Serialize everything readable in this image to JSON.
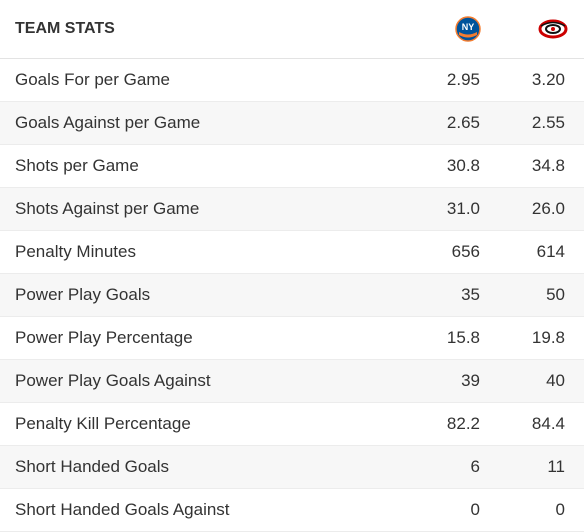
{
  "header": {
    "title": "TEAM STATS",
    "home_logo": "islanders-logo-icon",
    "away_logo": "hurricanes-logo-icon"
  },
  "colors": {
    "islanders_blue": "#00539b",
    "islanders_orange": "#f47d30",
    "hurricanes_red": "#cc0000",
    "stripe": "#f7f7f7"
  },
  "rows": [
    {
      "label": "Goals For per Game",
      "home": "2.95",
      "away": "3.20"
    },
    {
      "label": "Goals Against per Game",
      "home": "2.65",
      "away": "2.55"
    },
    {
      "label": "Shots per Game",
      "home": "30.8",
      "away": "34.8"
    },
    {
      "label": "Shots Against per Game",
      "home": "31.0",
      "away": "26.0"
    },
    {
      "label": "Penalty Minutes",
      "home": "656",
      "away": "614"
    },
    {
      "label": "Power Play Goals",
      "home": "35",
      "away": "50"
    },
    {
      "label": "Power Play Percentage",
      "home": "15.8",
      "away": "19.8"
    },
    {
      "label": "Power Play Goals Against",
      "home": "39",
      "away": "40"
    },
    {
      "label": "Penalty Kill Percentage",
      "home": "82.2",
      "away": "84.4"
    },
    {
      "label": "Short Handed Goals",
      "home": "6",
      "away": "11"
    },
    {
      "label": "Short Handed Goals Against",
      "home": "0",
      "away": "0"
    }
  ]
}
